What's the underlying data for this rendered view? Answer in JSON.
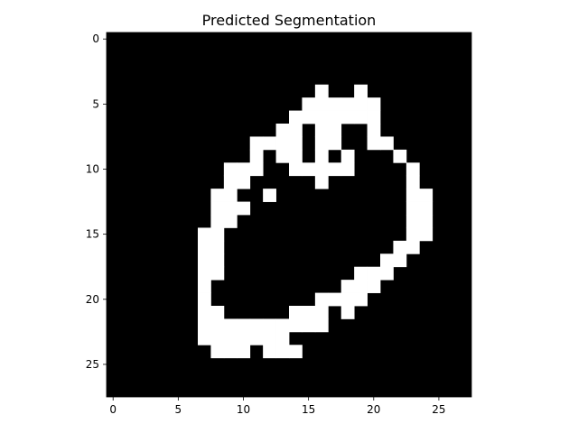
{
  "chart_data": {
    "type": "heatmap",
    "title": "Predicted Segmentation",
    "xlabel": "",
    "ylabel": "",
    "grid": false,
    "colormap": {
      "0": "#000000",
      "1": "#ffffff"
    },
    "x_ticks": [
      0,
      5,
      10,
      15,
      20,
      25
    ],
    "y_ticks": [
      0,
      5,
      10,
      15,
      20,
      25
    ],
    "xlim": [
      -0.5,
      27.5
    ],
    "ylim": [
      27.5,
      -0.5
    ],
    "matrix": [
      "0000000000000000000000000000",
      "0000000000000000000000000000",
      "0000000000000000000000000000",
      "0000000000000000000000000000",
      "0000000000000000100100000000",
      "0000000000000001111110000000",
      "0000000000000011111110000000",
      "0000000000000110110010000000",
      "0000000000011110110011000000",
      "0000000000010110101000100000",
      "0000000001110011111000010000",
      "0000000001100000100000010000",
      "0000000011001000000000011000",
      "0000000011100000000000011000",
      "0000000011000000000000011000",
      "0000000110000000000000011000",
      "0000000110000000000000110000",
      "0000000110000000000001100000",
      "0000000110000000000111000000",
      "0000000100000000001110000000",
      "0000000100000000111100000000",
      "0000000110000011101000000000",
      "0000000111111111100000000000",
      "0000000111111100000000000000",
      "0000000011101110000000000000",
      "0000000000000000000000000000",
      "0000000000000000000000000000",
      "0000000000000000000000000000"
    ]
  }
}
